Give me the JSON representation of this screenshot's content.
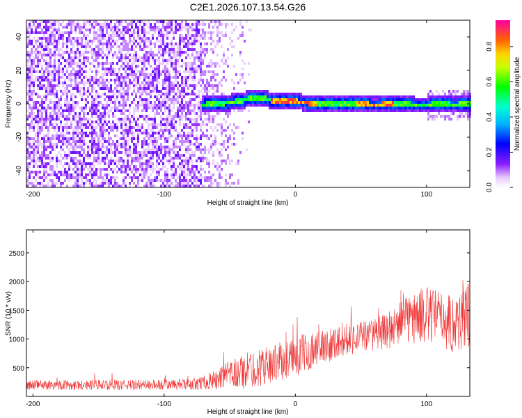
{
  "chart_data": [
    {
      "type": "heatmap",
      "title": "C2E1.2026.107.13.54.G26",
      "xlabel": "Height of straight line (km)",
      "ylabel": "Frequency (Hz)",
      "xlim": [
        -205,
        133
      ],
      "ylim": [
        -50,
        50
      ],
      "xticks": [
        -200,
        -100,
        0,
        100
      ],
      "yticks": [
        -40,
        -20,
        0,
        20,
        40
      ],
      "colorbar": {
        "label": "Normalized spectral amplitude",
        "range": [
          0,
          0.95
        ],
        "ticks": [
          "0.0",
          "0.2",
          "0.4",
          "0.6",
          "0.8"
        ],
        "colormap": "rainbow"
      },
      "signal_track": {
        "description": "narrow band near 0 Hz",
        "start_km": -72,
        "end_km": 133,
        "center_freq_hz": 1,
        "x_km": [
          -72,
          -60,
          -45,
          -35,
          -25,
          -15,
          0,
          15,
          40,
          60,
          80,
          90,
          100,
          110,
          120,
          133
        ],
        "freq_hz": [
          0,
          1,
          2,
          4,
          4,
          2,
          2,
          1,
          1,
          0,
          1,
          0,
          0,
          1,
          0,
          1
        ]
      },
      "noise_region": {
        "start_km": -205,
        "end_km": -72,
        "description": "broadband noise"
      }
    },
    {
      "type": "line",
      "xlabel": "Height of straight line (km)",
      "ylabel": "SNR (10 * v/v)",
      "xlim": [
        -205,
        133
      ],
      "ylim": [
        0,
        2900
      ],
      "xticks": [
        -200,
        -100,
        0,
        100
      ],
      "yticks": [
        500,
        1000,
        1500,
        2000,
        2500
      ],
      "color": "#ee3333",
      "series": [
        {
          "name": "SNR",
          "x": [
            -205,
            -180,
            -160,
            -140,
            -120,
            -100,
            -80,
            -70,
            -60,
            -50,
            -40,
            -30,
            -20,
            -10,
            0,
            10,
            20,
            30,
            40,
            50,
            60,
            70,
            80,
            90,
            100,
            110,
            120,
            125,
            133
          ],
          "y": [
            200,
            200,
            200,
            200,
            200,
            200,
            210,
            240,
            290,
            380,
            430,
            480,
            560,
            620,
            680,
            790,
            860,
            940,
            1020,
            1040,
            1080,
            1140,
            1280,
            1370,
            1420,
            1380,
            1260,
            1320,
            1400
          ],
          "spread": [
            90,
            90,
            90,
            90,
            90,
            90,
            100,
            120,
            180,
            250,
            320,
            330,
            320,
            340,
            360,
            330,
            300,
            300,
            300,
            280,
            280,
            320,
            380,
            470,
            500,
            480,
            520,
            600,
            700
          ]
        }
      ]
    }
  ]
}
